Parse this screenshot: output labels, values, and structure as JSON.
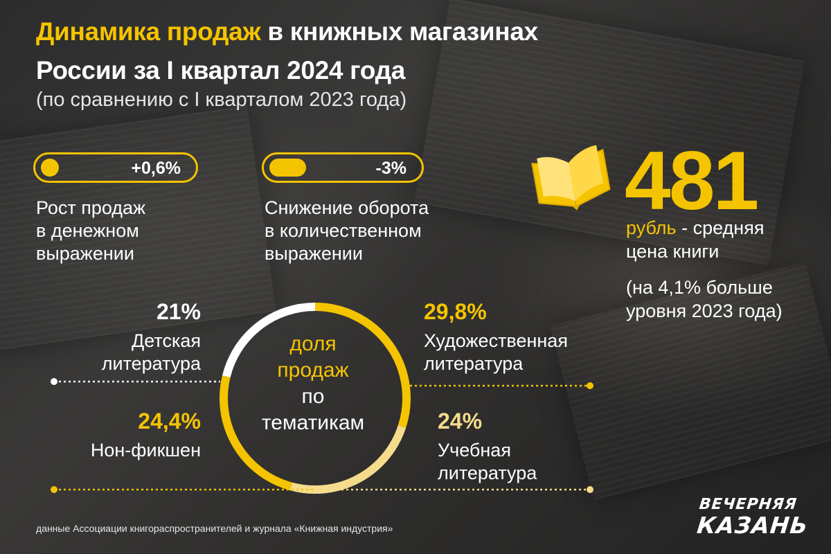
{
  "header": {
    "title_highlight": "Динамика продаж",
    "title_rest": " в книжных магазинах",
    "title_line2": "России за I квартал 2024 года",
    "subtitle": "(по сравнению с I кварталом 2023 года)"
  },
  "indicators": [
    {
      "value": "+0,6%",
      "fill_fraction": 0.12,
      "description": [
        "Рост продаж",
        "в денежном",
        "выражении"
      ]
    },
    {
      "value": "-3%",
      "fill_fraction": 0.25,
      "description": [
        "Снижение оборота",
        "в количественном",
        "выражении"
      ]
    }
  ],
  "price": {
    "value": "481",
    "unit": "рубль",
    "label": " - средняя",
    "label2": "цена книги",
    "note": [
      "(на 4,1% больше",
      "уровня 2023 года)"
    ],
    "icon": "open-book-icon"
  },
  "center_label": {
    "highlight": [
      "доля",
      "продаж"
    ],
    "rest": [
      "по",
      "тематикам"
    ]
  },
  "chart_data": {
    "type": "pie",
    "categories": [
      "Художественная литература",
      "Учебная литература",
      "Нон-фикшен",
      "Детская литература"
    ],
    "values": [
      29.8,
      24,
      24.4,
      21
    ],
    "labels": [
      "29,8%",
      "24%",
      "24,4%",
      "21%"
    ],
    "colors": [
      "#f5c400",
      "#f5dc8c",
      "#f5c400",
      "#ffffff"
    ]
  },
  "segments_text": {
    "fiction": {
      "pct": "29,8%",
      "name": [
        "Художественная",
        "литература"
      ]
    },
    "edu": {
      "pct": "24%",
      "name": [
        "Учебная",
        "литература"
      ]
    },
    "nonfic": {
      "pct": "24,4%",
      "name": [
        "Нон-фикшен"
      ]
    },
    "kids": {
      "pct": "21%",
      "name": [
        "Детская",
        "литература"
      ]
    }
  },
  "footer": {
    "source": "данные Ассоциации книгораспространителей и журнала «Книжная индустрия»",
    "logo_line1": "ВЕЧЕРНЯЯ",
    "logo_line2": "КАЗАНЬ"
  }
}
